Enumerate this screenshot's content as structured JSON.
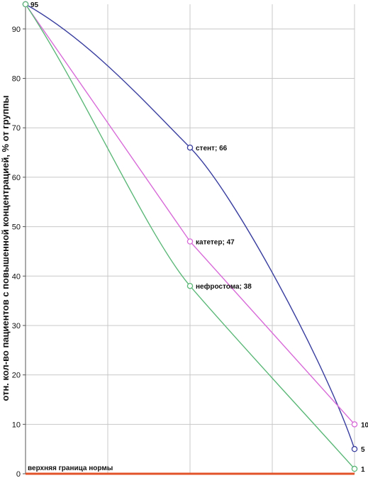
{
  "chart_data": {
    "type": "line",
    "ylabel": "отн. кол-во пациентов с повышенной концентрацией, % от группы",
    "ylim": [
      0,
      95
    ],
    "yticks": [
      0,
      10,
      20,
      30,
      40,
      50,
      60,
      70,
      80,
      90
    ],
    "x": [
      0,
      1,
      2
    ],
    "grid": true,
    "series": [
      {
        "name": "стент",
        "color": "#3a3f9f",
        "values": [
          95,
          66,
          5
        ]
      },
      {
        "name": "катетер",
        "color": "#d86ad8",
        "values": [
          95,
          47,
          10
        ]
      },
      {
        "name": "нефростома",
        "color": "#5cb878",
        "values": [
          95,
          38,
          1
        ]
      }
    ],
    "data_labels": [
      {
        "series": 0,
        "index": 1,
        "text": "стент; 66"
      },
      {
        "series": 1,
        "index": 1,
        "text": "катетер; 47"
      },
      {
        "series": 2,
        "index": 1,
        "text": "нефростома; 38"
      },
      {
        "series": 0,
        "index": 0,
        "text": "95"
      },
      {
        "series": 0,
        "index": 2,
        "text": "5"
      },
      {
        "series": 1,
        "index": 2,
        "text": "10"
      },
      {
        "series": 2,
        "index": 2,
        "text": "1"
      }
    ],
    "reference_line": {
      "value": 0,
      "label": "верхняя граница нормы",
      "color": "#e2532a"
    }
  }
}
